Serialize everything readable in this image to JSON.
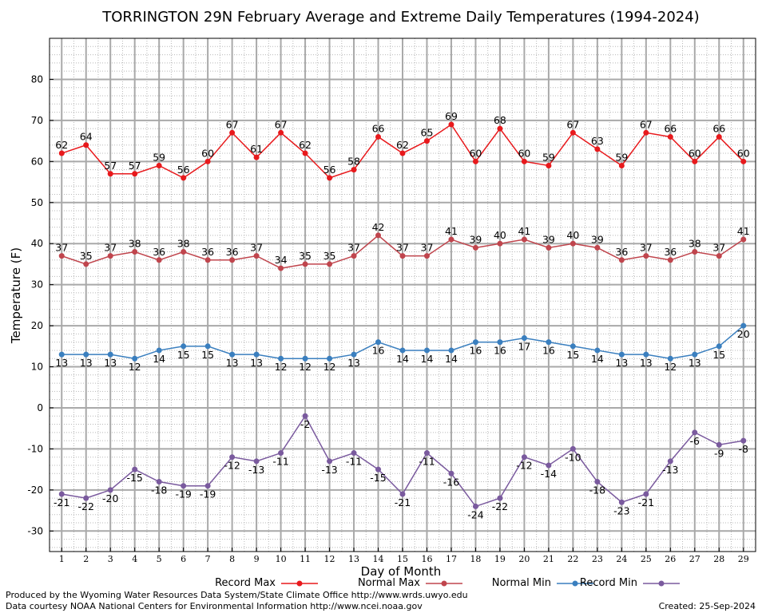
{
  "chart_data": {
    "type": "line",
    "title": "TORRINGTON 29N February Average and Extreme Daily Temperatures (1994-2024)",
    "xlabel": "Day of Month",
    "ylabel": "Temperature (F)",
    "x": [
      1,
      2,
      3,
      4,
      5,
      6,
      7,
      8,
      9,
      10,
      11,
      12,
      13,
      14,
      15,
      16,
      17,
      18,
      19,
      20,
      21,
      22,
      23,
      24,
      25,
      26,
      27,
      28,
      29
    ],
    "xlim": [
      0.5,
      29.5
    ],
    "ylim": [
      -35,
      90
    ],
    "yticks": [
      -30,
      -20,
      -10,
      0,
      10,
      20,
      30,
      40,
      50,
      60,
      70,
      80
    ],
    "grid": true,
    "legend_position": "bottom",
    "series": [
      {
        "name": "Record Max",
        "color": "#e8191c",
        "label_position": "above",
        "values": [
          62,
          64,
          57,
          57,
          59,
          56,
          60,
          67,
          61,
          67,
          62,
          56,
          58,
          66,
          62,
          65,
          69,
          60,
          68,
          60,
          59,
          67,
          63,
          59,
          67,
          66,
          60,
          66,
          60
        ]
      },
      {
        "name": "Normal Max",
        "color": "#c0454d",
        "label_position": "above",
        "values": [
          37,
          35,
          37,
          38,
          36,
          38,
          36,
          36,
          37,
          34,
          35,
          35,
          37,
          42,
          37,
          37,
          41,
          39,
          40,
          41,
          39,
          40,
          39,
          36,
          37,
          36,
          38,
          37,
          41
        ]
      },
      {
        "name": "Normal Min",
        "color": "#3a7fbf",
        "label_position": "below",
        "values": [
          13,
          13,
          13,
          12,
          14,
          15,
          15,
          13,
          13,
          12,
          12,
          12,
          13,
          16,
          14,
          14,
          14,
          16,
          16,
          17,
          16,
          15,
          14,
          13,
          13,
          12,
          13,
          15,
          20
        ]
      },
      {
        "name": "Record Min",
        "color": "#7a5a9e",
        "label_position": "below",
        "values": [
          -21,
          -22,
          -20,
          -15,
          -18,
          -19,
          -19,
          -12,
          -13,
          -11,
          -2,
          -13,
          -11,
          -15,
          -21,
          -11,
          -16,
          -24,
          -22,
          -12,
          -14,
          -10,
          -18,
          -23,
          -21,
          -13,
          -6,
          -9,
          -8
        ]
      }
    ]
  },
  "footer": {
    "produced_by": "Produced by the Wyoming Water Resources Data System/State Climate Office http://www.wrds.uwyo.edu",
    "data_courtesy": "Data courtesy NOAA National Centers for Environmental Information http://www.ncei.noaa.gov",
    "created": "Created:  25-Sep-2024"
  }
}
